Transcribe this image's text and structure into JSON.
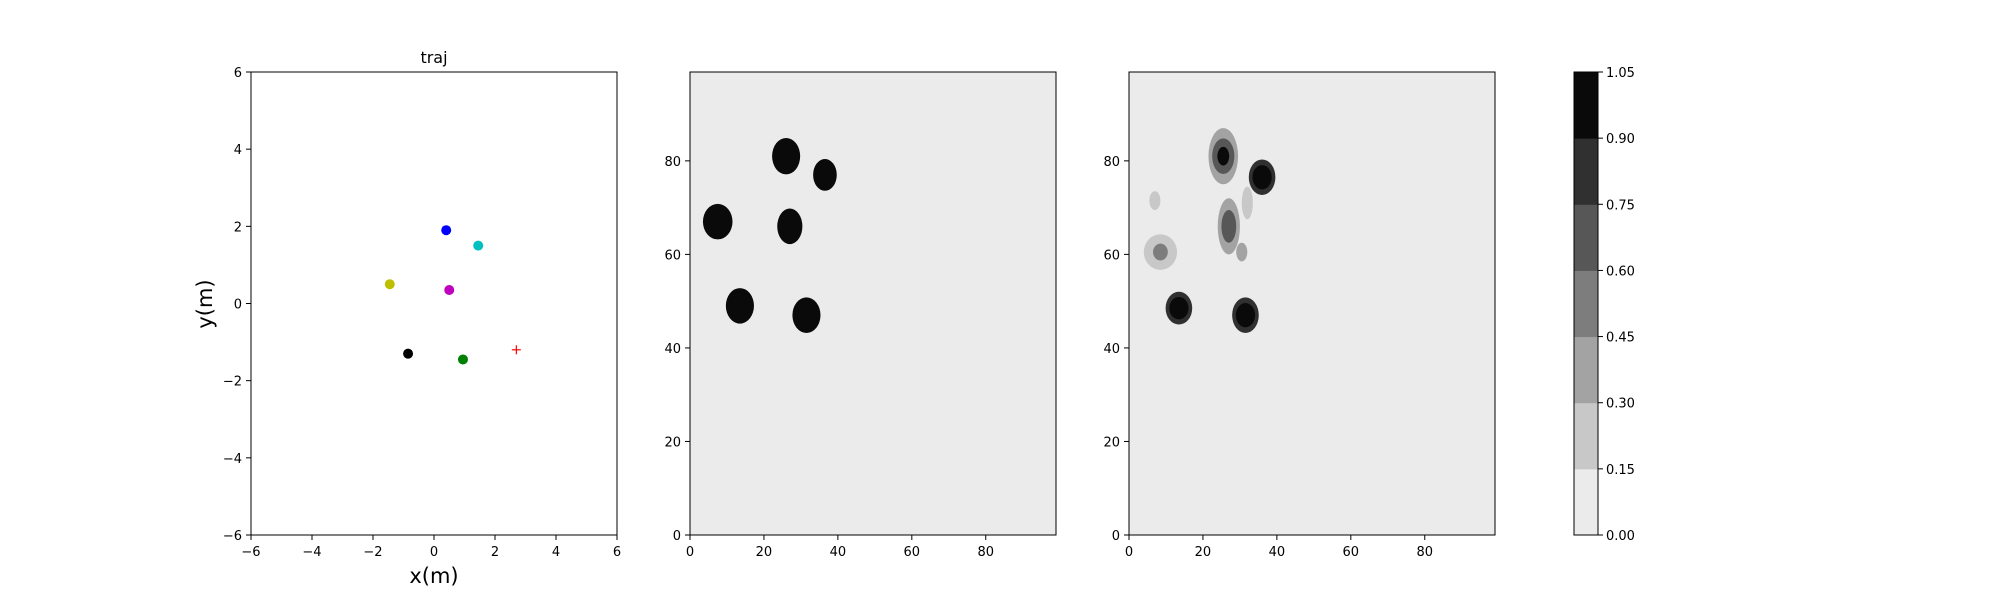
{
  "chart_data": [
    {
      "type": "scatter",
      "title": "traj",
      "xlabel": "x(m)",
      "ylabel": "y(m)",
      "xlim": [
        -6,
        6
      ],
      "ylim": [
        -6,
        6
      ],
      "xticks": [
        -6,
        -4,
        -2,
        0,
        2,
        4,
        6
      ],
      "yticks": [
        -6,
        -4,
        -2,
        0,
        2,
        4,
        6
      ],
      "grid": false,
      "points": [
        {
          "x": 0.4,
          "y": 1.9,
          "color": "#0000ff",
          "marker": "dot"
        },
        {
          "x": 1.45,
          "y": 1.5,
          "color": "#00bfbf",
          "marker": "dot"
        },
        {
          "x": -1.45,
          "y": 0.5,
          "color": "#bfbf00",
          "marker": "dot"
        },
        {
          "x": 0.5,
          "y": 0.35,
          "color": "#bf00bf",
          "marker": "dot"
        },
        {
          "x": -0.85,
          "y": -1.3,
          "color": "#000000",
          "marker": "dot"
        },
        {
          "x": 0.95,
          "y": -1.45,
          "color": "#008000",
          "marker": "dot"
        },
        {
          "x": 2.7,
          "y": -1.2,
          "color": "#ff0000",
          "marker": "plus"
        }
      ]
    },
    {
      "type": "heatmap",
      "title": "",
      "xlim": [
        0,
        99
      ],
      "ylim": [
        0,
        99
      ],
      "xticks": [
        0,
        20,
        40,
        60,
        80
      ],
      "yticks": [
        0,
        20,
        40,
        60,
        80
      ],
      "background": "#ebebeb",
      "blobs": [
        {
          "x": 26,
          "y": 81,
          "rx": 3.8,
          "ry": 3.9,
          "value": 1.0
        },
        {
          "x": 36.5,
          "y": 77,
          "rx": 3.2,
          "ry": 3.4,
          "value": 1.0
        },
        {
          "x": 7.5,
          "y": 67,
          "rx": 4.0,
          "ry": 3.8,
          "value": 1.0
        },
        {
          "x": 27,
          "y": 66,
          "rx": 3.4,
          "ry": 3.8,
          "value": 1.0
        },
        {
          "x": 13.5,
          "y": 49,
          "rx": 3.8,
          "ry": 3.8,
          "value": 1.0
        },
        {
          "x": 31.5,
          "y": 47,
          "rx": 3.8,
          "ry": 3.8,
          "value": 1.0
        }
      ]
    },
    {
      "type": "heatmap",
      "title": "",
      "xlim": [
        0,
        99
      ],
      "ylim": [
        0,
        99
      ],
      "xticks": [
        0,
        20,
        40,
        60,
        80
      ],
      "yticks": [
        0,
        20,
        40,
        60,
        80
      ],
      "background": "#ebebeb",
      "blobs": [
        {
          "x": 25.5,
          "y": 81,
          "rx": 4.0,
          "ry": 6.0,
          "value": 0.35
        },
        {
          "x": 25.5,
          "y": 81,
          "rx": 3.0,
          "ry": 3.8,
          "value": 0.7
        },
        {
          "x": 25.5,
          "y": 81,
          "rx": 1.6,
          "ry": 2.0,
          "value": 0.95
        },
        {
          "x": 36,
          "y": 76.5,
          "rx": 3.6,
          "ry": 3.8,
          "value": 0.8
        },
        {
          "x": 36,
          "y": 76.5,
          "rx": 2.6,
          "ry": 2.6,
          "value": 1.0
        },
        {
          "x": 27,
          "y": 66,
          "rx": 3.0,
          "ry": 6.0,
          "value": 0.35
        },
        {
          "x": 27,
          "y": 66,
          "rx": 2.0,
          "ry": 3.5,
          "value": 0.7
        },
        {
          "x": 30.5,
          "y": 60.5,
          "rx": 1.5,
          "ry": 2.0,
          "value": 0.4
        },
        {
          "x": 32,
          "y": 71,
          "rx": 1.5,
          "ry": 3.5,
          "value": 0.3
        },
        {
          "x": 7,
          "y": 71.5,
          "rx": 1.5,
          "ry": 2.0,
          "value": 0.3
        },
        {
          "x": 8.5,
          "y": 60.5,
          "rx": 4.5,
          "ry": 3.8,
          "value": 0.3
        },
        {
          "x": 8.5,
          "y": 60.5,
          "rx": 2.0,
          "ry": 1.8,
          "value": 0.5
        },
        {
          "x": 13.5,
          "y": 48.5,
          "rx": 3.6,
          "ry": 3.5,
          "value": 0.8
        },
        {
          "x": 13.5,
          "y": 48.5,
          "rx": 2.6,
          "ry": 2.4,
          "value": 1.0
        },
        {
          "x": 31.5,
          "y": 47,
          "rx": 3.6,
          "ry": 3.8,
          "value": 0.8
        },
        {
          "x": 31.5,
          "y": 47,
          "rx": 2.6,
          "ry": 2.6,
          "value": 1.0
        }
      ]
    },
    {
      "type": "colorbar",
      "levels": [
        "0.00",
        "0.15",
        "0.30",
        "0.45",
        "0.60",
        "0.75",
        "0.90",
        "1.05"
      ],
      "colors": [
        "#ebebeb",
        "#c8c8c8",
        "#a3a3a3",
        "#7d7d7d",
        "#575757",
        "#303030",
        "#0a0a0a"
      ]
    }
  ]
}
